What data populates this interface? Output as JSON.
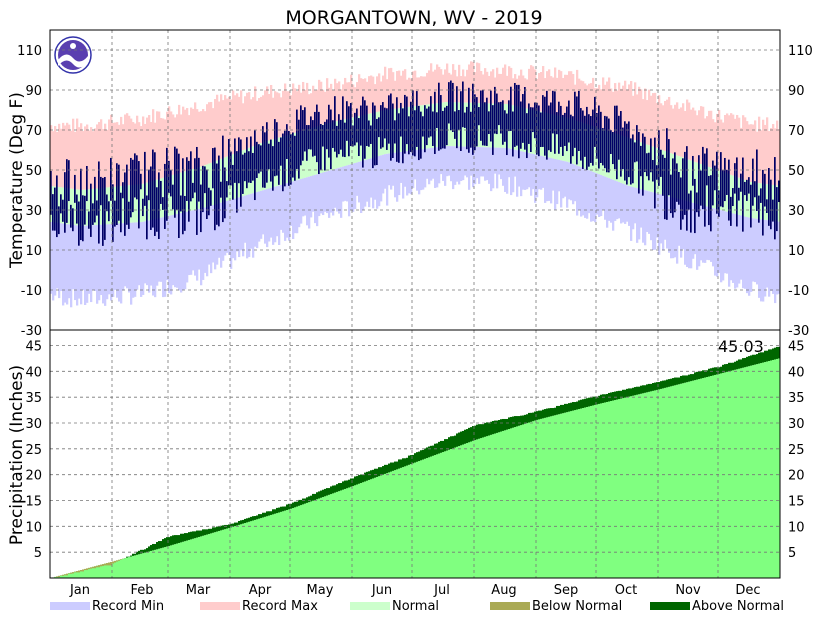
{
  "chart_data": {
    "type": "area",
    "title": "MORGANTOWN, WV - 2019",
    "months": [
      "Jan",
      "Feb",
      "Mar",
      "Apr",
      "May",
      "Jun",
      "Jul",
      "Aug",
      "Sep",
      "Oct",
      "Nov",
      "Dec"
    ],
    "temperature": {
      "ylabel": "Temperature (Deg F)",
      "ylim": [
        -30,
        120
      ],
      "ticks": [
        -30,
        -10,
        10,
        30,
        50,
        70,
        90,
        110
      ],
      "series_colors": {
        "record_min": "#ccccff",
        "record_max": "#ffcccc",
        "normal": "#ccffcc",
        "observed": "#000066"
      },
      "normal_high_monthly": [
        40,
        43,
        52,
        64,
        73,
        80,
        84,
        83,
        76,
        66,
        55,
        44
      ],
      "normal_low_monthly": [
        22,
        24,
        31,
        40,
        49,
        58,
        62,
        61,
        54,
        42,
        34,
        26
      ],
      "record_high_monthly": [
        72,
        76,
        83,
        89,
        92,
        98,
        101,
        100,
        97,
        91,
        81,
        73
      ],
      "record_low_monthly": [
        -15,
        -12,
        -3,
        14,
        27,
        37,
        45,
        43,
        33,
        20,
        5,
        -10
      ],
      "observed_high_monthly": [
        41,
        48,
        50,
        68,
        80,
        80,
        87,
        86,
        84,
        72,
        50,
        49
      ],
      "observed_low_monthly": [
        22,
        28,
        28,
        43,
        56,
        59,
        66,
        65,
        59,
        49,
        30,
        31
      ]
    },
    "precipitation": {
      "ylabel": "Precipitation (Inches)",
      "ylim": [
        0,
        48
      ],
      "ticks": [
        5,
        10,
        15,
        20,
        25,
        30,
        35,
        40,
        45
      ],
      "year_total": "45.03",
      "normal_cumulative_month_end": [
        3.2,
        6.2,
        9.8,
        13.4,
        17.8,
        22.2,
        26.7,
        30.6,
        33.6,
        36.5,
        39.5,
        42.6
      ],
      "observed_cumulative_month_end": [
        2.8,
        8.1,
        10.5,
        14.5,
        19.5,
        24.0,
        29.6,
        32.3,
        35.3,
        38.0,
        41.0,
        45.03
      ]
    },
    "legend": [
      {
        "label": "Record Min",
        "color": "#ccccff"
      },
      {
        "label": "Record Max",
        "color": "#ffcccc"
      },
      {
        "label": "Normal",
        "color": "#ccffcc"
      },
      {
        "label": "Below Normal",
        "color": "#aaaa55"
      },
      {
        "label": "Above Normal",
        "color": "#006600"
      }
    ]
  }
}
